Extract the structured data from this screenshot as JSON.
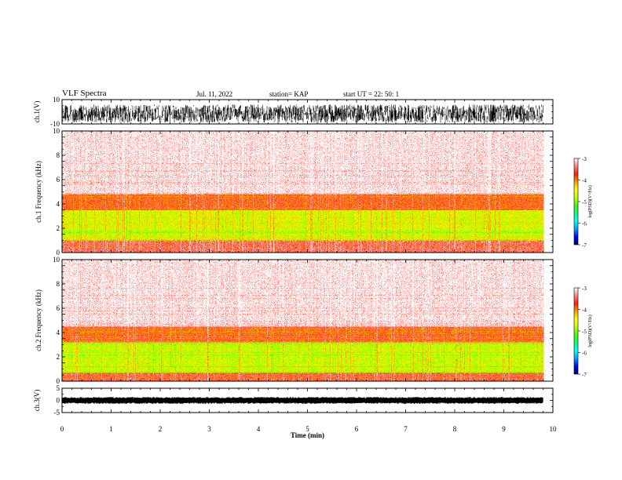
{
  "header": {
    "title": "VLF Spectra",
    "date": "Jul. 11, 2022",
    "station": "station= KAP",
    "start": "start UT = 22: 50: 1"
  },
  "colors": {
    "scale": [
      "#000080",
      "#0000ff",
      "#00a0ff",
      "#00ffff",
      "#00ff80",
      "#40ff00",
      "#c0ff00",
      "#ffff00",
      "#ffa000",
      "#ff2000",
      "#ff8080",
      "#ffffff"
    ]
  },
  "chart_data": [
    {
      "type": "line",
      "panel": "ch1-waveform",
      "ylabel": "ch.1(V)",
      "ylim": [
        -10,
        10
      ],
      "yticks": [
        "10",
        "-10"
      ],
      "xlim": [
        0,
        10
      ],
      "data_end_min": 9.8,
      "style": "dense black noise waveform, roughly between -9 and 6 V"
    },
    {
      "type": "heatmap",
      "panel": "ch1-spectrogram",
      "ylabel": "ch.1 Frequency (kHz)",
      "ylim": [
        0,
        10
      ],
      "yticks": [
        "0",
        "2",
        "4",
        "6",
        "8",
        "10"
      ],
      "xlim": [
        0,
        10
      ],
      "data_end_min": 9.8,
      "bands": [
        {
          "from_khz": 0,
          "to_khz": 1.0,
          "level": -3.5
        },
        {
          "from_khz": 1.0,
          "to_khz": 3.5,
          "level": -4.6
        },
        {
          "from_khz": 3.5,
          "to_khz": 4.8,
          "level": -3.8
        },
        {
          "from_khz": 4.8,
          "to_khz": 10,
          "level": -3.1
        }
      ],
      "colorbar": {
        "label": "log(PSD)(V²/Hz)",
        "ticks": [
          "-3",
          "-4",
          "-5",
          "-6",
          "-7"
        ],
        "range": [
          -7,
          -3
        ]
      }
    },
    {
      "type": "heatmap",
      "panel": "ch2-spectrogram",
      "ylabel": "ch.2 Frequency (kHz)",
      "ylim": [
        0,
        10
      ],
      "yticks": [
        "0",
        "2",
        "4",
        "6",
        "8",
        "10"
      ],
      "xlim": [
        0,
        10
      ],
      "data_end_min": 9.8,
      "bands": [
        {
          "from_khz": 0,
          "to_khz": 0.7,
          "level": -3.6
        },
        {
          "from_khz": 0.7,
          "to_khz": 3.2,
          "level": -4.7
        },
        {
          "from_khz": 3.2,
          "to_khz": 4.5,
          "level": -3.8
        },
        {
          "from_khz": 4.5,
          "to_khz": 10,
          "level": -3.1
        }
      ],
      "colorbar": {
        "label": "log(PSD)(V²/Hz)",
        "ticks": [
          "-3",
          "-4",
          "-5",
          "-6",
          "-7"
        ],
        "range": [
          -7,
          -3
        ]
      }
    },
    {
      "type": "line",
      "panel": "ch3-waveform",
      "ylabel": "ch.3(V)",
      "ylim": [
        -5,
        5
      ],
      "yticks": [
        "5",
        "0",
        "-5"
      ],
      "xlim": [
        0,
        10
      ],
      "data_end_min": 9.8,
      "style": "thick black band near 0 V"
    }
  ],
  "xaxis": {
    "label": "Time (min)",
    "ticks": [
      "0",
      "1",
      "2",
      "3",
      "4",
      "5",
      "6",
      "7",
      "8",
      "9",
      "10"
    ]
  }
}
